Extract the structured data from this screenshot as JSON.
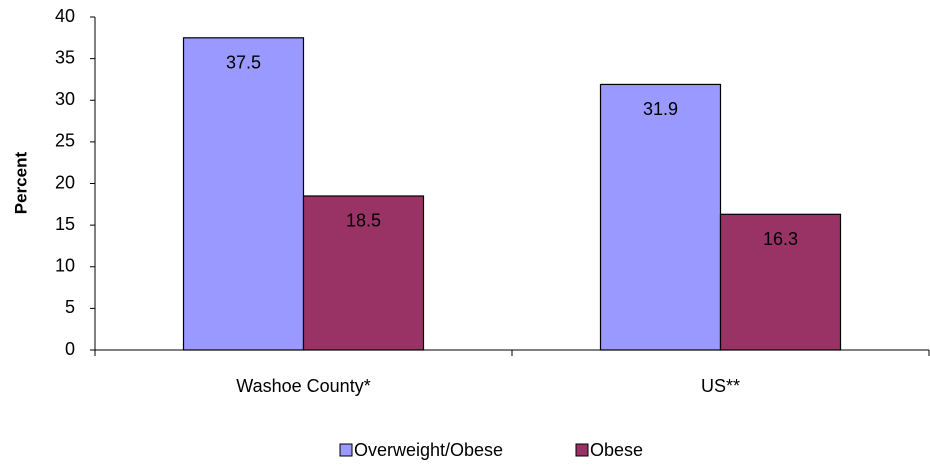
{
  "chart_data": {
    "type": "bar",
    "y_label": "Percent",
    "categories": [
      "Washoe County*",
      "US**"
    ],
    "series": [
      {
        "name": "Overweight/Obese",
        "color": "#9999ff",
        "values": [
          37.5,
          31.9
        ]
      },
      {
        "name": "Obese",
        "color": "#993366",
        "values": [
          18.5,
          16.3
        ]
      }
    ],
    "ylim": [
      0,
      40
    ],
    "yticks": [
      0,
      5,
      10,
      15,
      20,
      25,
      30,
      35,
      40
    ],
    "legend": "bottom"
  }
}
